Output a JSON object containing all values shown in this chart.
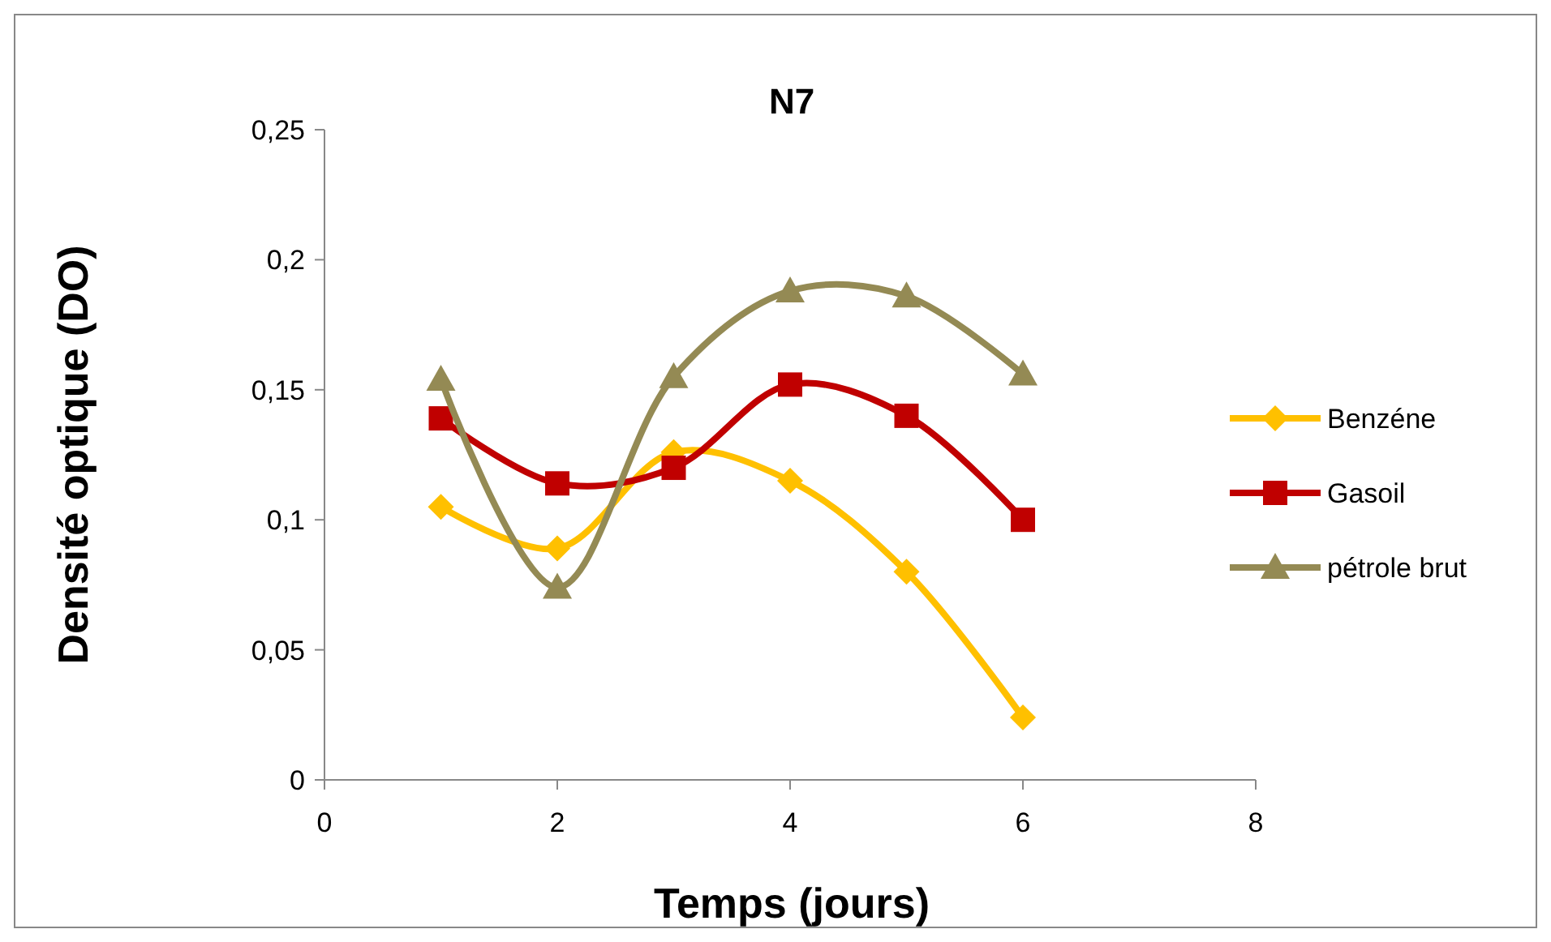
{
  "chart_data": {
    "type": "line",
    "title": "N7",
    "xlabel": "Temps (jours)",
    "ylabel": "Densité optique (DO)",
    "xlim": [
      0,
      8
    ],
    "xticks": [
      0,
      2,
      4,
      6,
      8
    ],
    "ylim": [
      0,
      0.25
    ],
    "yticks": [
      0,
      {
        "value": 0.05,
        "label": "0,05"
      },
      {
        "value": 0.1,
        "label": "0,1"
      },
      {
        "value": 0.15,
        "label": "0,15"
      },
      {
        "value": 0.2,
        "label": "0,2"
      },
      {
        "value": 0.25,
        "label": "0,25"
      }
    ],
    "x": [
      1,
      2,
      3,
      4,
      5,
      6
    ],
    "legend": "right",
    "grid": false,
    "series": [
      {
        "name": "Benzéne",
        "color": "#ffc000",
        "marker": "diamond",
        "values": [
          0.105,
          0.089,
          0.126,
          0.115,
          0.08,
          0.024
        ]
      },
      {
        "name": "Gasoil",
        "color": "#c00000",
        "marker": "square",
        "values": [
          0.139,
          0.114,
          0.12,
          0.152,
          0.14,
          0.1
        ]
      },
      {
        "name": "pétrole brut",
        "color": "#948a54",
        "marker": "triangle",
        "values": [
          0.154,
          0.074,
          0.155,
          0.188,
          0.186,
          0.156
        ]
      }
    ]
  }
}
